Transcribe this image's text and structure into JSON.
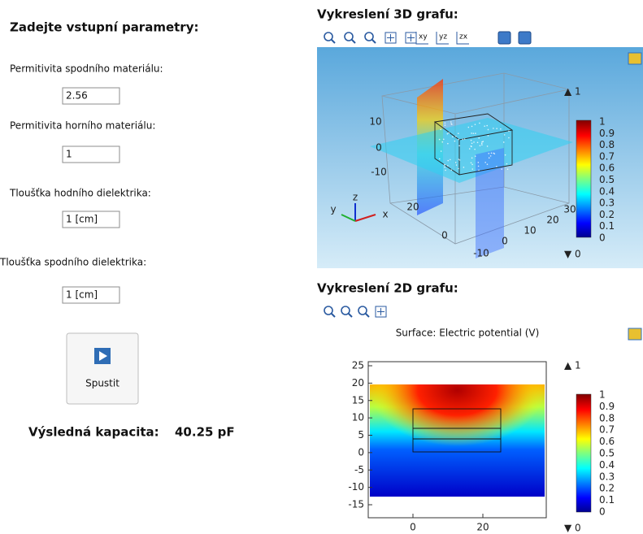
{
  "left_panel": {
    "title": "Zadejte vstupní parametry:",
    "fields": [
      {
        "label": "Permitivita spodního materiálu:",
        "value": "2.56"
      },
      {
        "label": "Permitivita horního materiálu:",
        "value": "1"
      },
      {
        "label": "Tloušťka hodního dielektrika:",
        "value": "1 [cm]"
      },
      {
        "label": "Tloušťka spodního dielektrika:",
        "value": "1 [cm]"
      }
    ],
    "button": "Spustit",
    "result": {
      "label": "Výsledná kapacita:",
      "value": "40.25 pF"
    }
  },
  "plot_3d": {
    "title": "Vykreslení 3D grafu:",
    "toolbar_view_labels": [
      "xy",
      "yz",
      "zx"
    ],
    "z_ticks": [
      "10",
      "0",
      "-10"
    ],
    "y_ticks": [
      "20",
      "0"
    ],
    "x_ticks": [
      "-10",
      "0",
      "10",
      "20",
      "30"
    ],
    "axis_names": [
      "z",
      "y",
      "x"
    ],
    "colorbar_labels": [
      "1",
      "0.9",
      "0.8",
      "0.7",
      "0.6",
      "0.5",
      "0.4",
      "0.3",
      "0.2",
      "0.1",
      "0"
    ],
    "max_label": "▲ 1",
    "min_label": "▼ 0"
  },
  "plot_2d": {
    "title": "Vykreslení 2D grafu:",
    "subtitle": "Surface: Electric potential (V)",
    "x_ticks": [
      "0",
      "20"
    ],
    "y_ticks": [
      "25",
      "20",
      "15",
      "10",
      "5",
      "0",
      "-5",
      "-10",
      "-15"
    ],
    "colorbar_labels": [
      "1",
      "0.9",
      "0.8",
      "0.7",
      "0.6",
      "0.5",
      "0.4",
      "0.3",
      "0.2",
      "0.1",
      "0"
    ],
    "max_label": "▲ 1",
    "min_label": "▼ 0"
  }
}
